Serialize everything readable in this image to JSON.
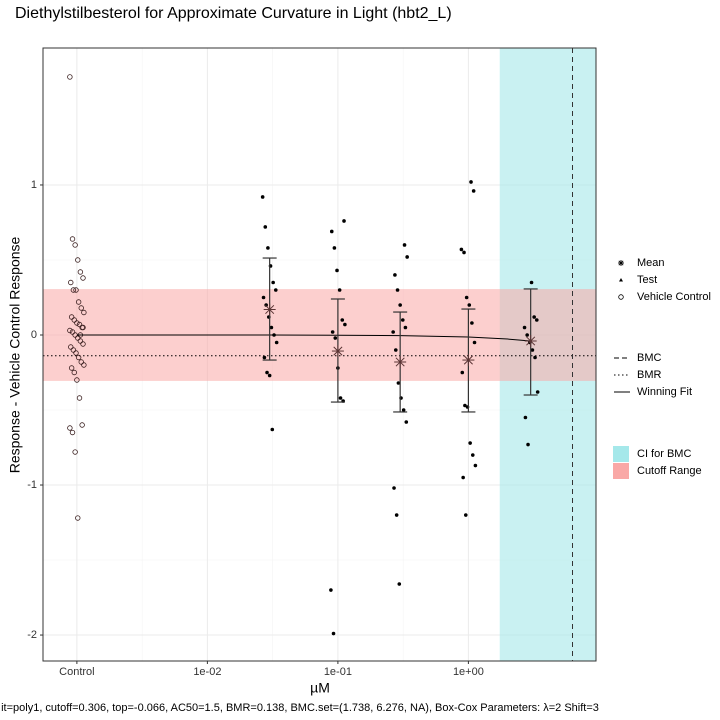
{
  "chart_data": {
    "type": "scatter",
    "title": "Diethylstilbesterol for Approximate Curvature in Light (hbt2_L)",
    "x_label": "µM",
    "y_label": "Response - Vehicle Control Response",
    "footer": "it=poly1, cutoff=0.306, top=-0.066, AC50=1.5, BMR=0.138, BMC.set=(1.738, 6.276, NA), Box-Cox Parameters: λ=2 Shift=3",
    "log_x": true,
    "grid": true,
    "xlim": [
      0.00055,
      9.5
    ],
    "ylim": [
      -2.173,
      1.913
    ],
    "xticks": [
      {
        "value": 0.001,
        "label": "Control"
      },
      {
        "value": 0.01,
        "label": "1e-02"
      },
      {
        "value": 0.1,
        "label": "1e-01"
      },
      {
        "value": 1,
        "label": "1e+00"
      }
    ],
    "yticks": [
      1,
      0,
      -1,
      -2
    ],
    "cutoff": 0.306,
    "bmr": 0.138,
    "bmc": 6.276,
    "bmc_ci": [
      1.738,
      null
    ],
    "control": {
      "x": 0.001,
      "values": [
        1.72,
        0.64,
        0.6,
        0.5,
        0.42,
        0.38,
        0.35,
        0.3,
        0.3,
        0.22,
        0.18,
        0.15,
        0.12,
        0.1,
        0.08,
        0.07,
        0.05,
        0.03,
        0.02,
        0.0,
        -0.02,
        -0.04,
        -0.06,
        -0.08,
        -0.1,
        -0.12,
        -0.15,
        -0.18,
        -0.2,
        -0.22,
        -0.25,
        -0.3,
        -0.42,
        -0.6,
        -0.62,
        -0.65,
        -0.78,
        -1.22,
        0.0,
        0.05
      ]
    },
    "dose_groups": [
      {
        "dose": 0.03,
        "values": [
          0.92,
          0.72,
          0.58,
          0.46,
          0.35,
          0.3,
          0.25,
          0.2,
          0.12,
          0.05,
          0.0,
          -0.05,
          -0.15,
          -0.25,
          -0.27,
          -0.63
        ],
        "mean": 0.17,
        "lower": -0.167,
        "upper": 0.513
      },
      {
        "dose": 0.1,
        "values": [
          0.76,
          0.69,
          0.58,
          0.43,
          0.3,
          0.1,
          0.07,
          0.02,
          -0.02,
          -0.22,
          -0.42,
          -0.44,
          -1.7,
          -1.99
        ],
        "mean": -0.107,
        "lower": -0.447,
        "upper": 0.24
      },
      {
        "dose": 0.3,
        "values": [
          0.6,
          0.52,
          0.4,
          0.3,
          0.2,
          0.1,
          0.05,
          0.02,
          -0.1,
          -0.32,
          -0.42,
          -0.5,
          -0.58,
          -1.02,
          -1.2,
          -1.66
        ],
        "mean": -0.18,
        "lower": -0.513,
        "upper": 0.153
      },
      {
        "dose": 1.0,
        "values": [
          1.02,
          0.96,
          0.57,
          0.55,
          0.25,
          0.2,
          0.08,
          -0.05,
          -0.25,
          -0.47,
          -0.48,
          -0.72,
          -0.8,
          -0.87,
          -0.95,
          -1.2
        ],
        "mean": -0.167,
        "lower": -0.513,
        "upper": 0.173
      },
      {
        "dose": 3.0,
        "values": [
          0.35,
          0.12,
          0.1,
          0.05,
          0.0,
          -0.05,
          -0.1,
          -0.15,
          -0.38,
          -0.55,
          -0.73
        ],
        "mean": -0.04,
        "lower": -0.4,
        "upper": 0.307
      }
    ],
    "fit": {
      "x": [
        0.001,
        0.03,
        0.1,
        0.3,
        1,
        2,
        3
      ],
      "y": [
        0,
        -0.0004,
        -0.0013,
        -0.004,
        -0.013,
        -0.027,
        -0.04
      ]
    },
    "legend_points": [
      "Mean",
      "Test",
      "Vehicle Control"
    ],
    "legend_lines": [
      "BMC",
      "BMR",
      "Winning Fit"
    ],
    "legend_fills": [
      {
        "name": "CI for BMC",
        "color": "#a5e8ea"
      },
      {
        "name": "Cutoff Range",
        "color": "#f9a8a6"
      }
    ]
  }
}
